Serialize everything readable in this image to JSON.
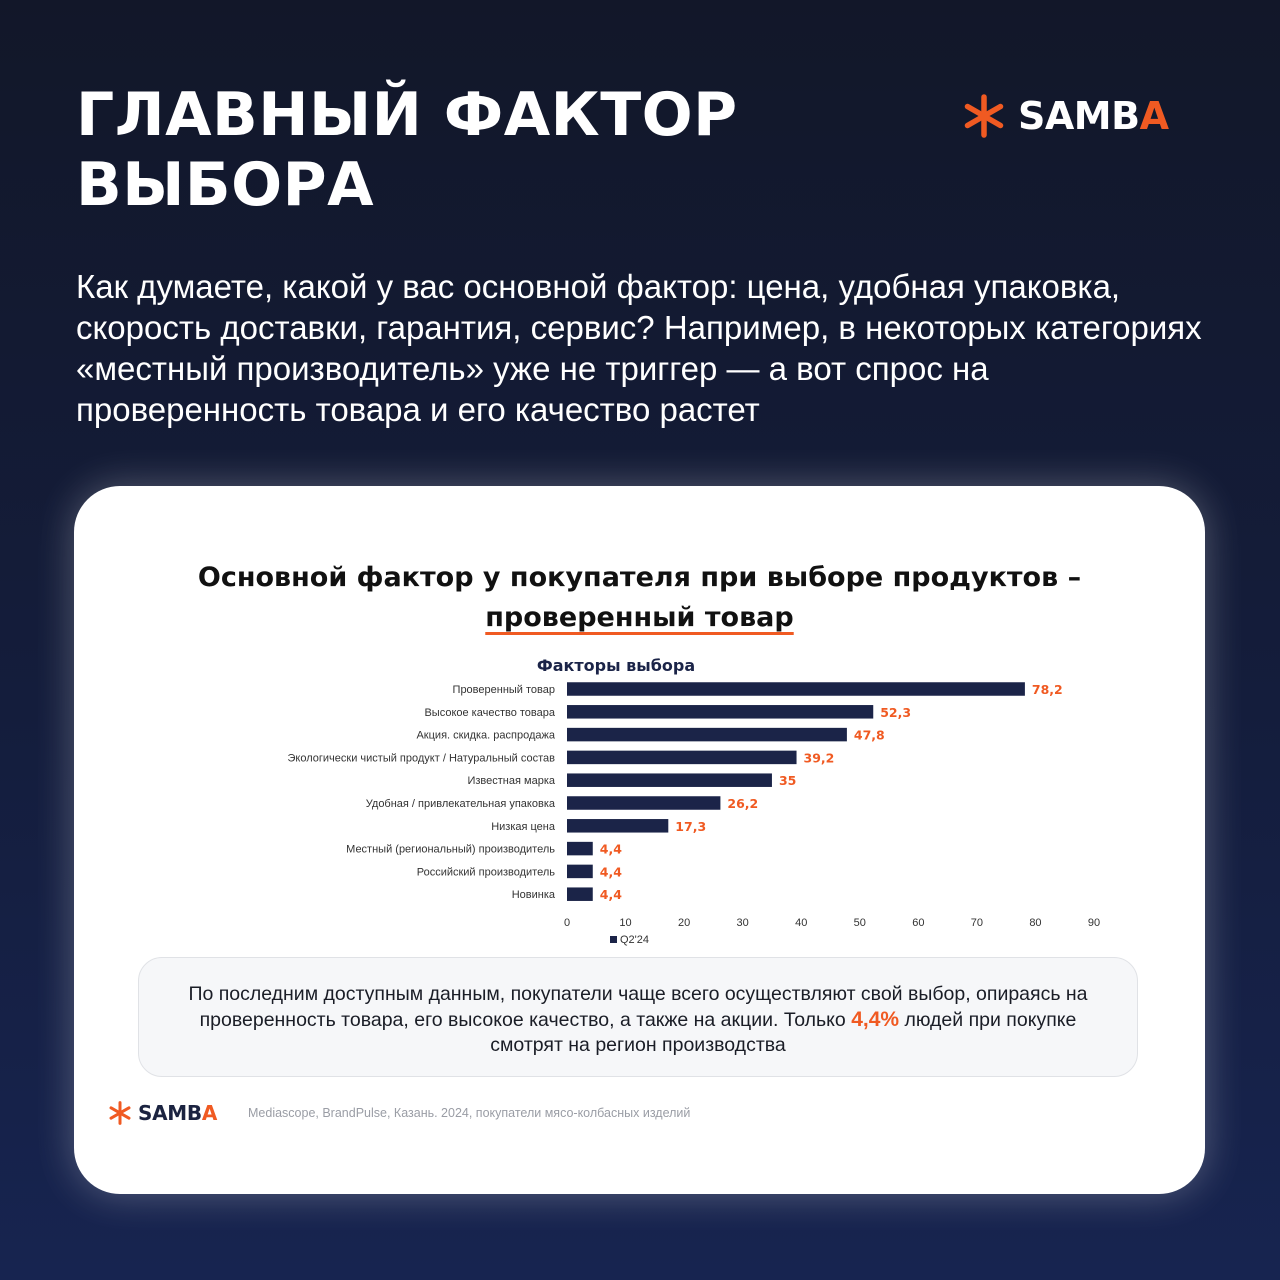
{
  "header": {
    "title_line1": "ГЛАВНЫЙ ФАКТОР",
    "title_line2": "ВЫБОРА",
    "brand_main": "SAMB",
    "brand_accent": "A"
  },
  "lead": "Как думаете, какой у вас основной фактор: цена, удобная упаковка, скорость доставки, гарантия, сервис? Например, в некоторых категориях «местный производитель» уже не триггер — а вот спрос на проверенность товара и его качество растет",
  "card": {
    "title_line1": "Основной фактор у покупателя при выборе продуктов –",
    "title_line2": "проверенный товар",
    "summary_before": "По последним доступным данным, покупатели чаще всего осуществляют свой выбор, опираясь на проверенность товара, его высокое качество, а также на акции. Только ",
    "summary_highlight": "4,4%",
    "summary_after": " людей при покупке смотрят на регион производства",
    "brand_main": "SAMB",
    "brand_accent": "A",
    "source": "Mediascope, BrandPulse, Казань. 2024, покупатели мясо-колбасных изделий"
  },
  "colors": {
    "accent": "#f05a22",
    "bar": "#1b2448",
    "background_top": "#121729",
    "background_bottom": "#172450"
  },
  "chart_data": {
    "type": "bar",
    "orientation": "horizontal",
    "title": "Факторы выбора",
    "categories": [
      "Проверенный товар",
      "Высокое качество товара",
      "Акция. скидка. распродажа",
      "Экологически чистый продукт / Натуральный состав",
      "Известная марка",
      "Удобная / привлекательная упаковка",
      "Низкая цена",
      "Местный (региональный) производитель",
      "Российский производитель",
      "Новинка"
    ],
    "series": [
      {
        "name": "Q2'24",
        "values": [
          78.2,
          52.3,
          47.8,
          39.2,
          35,
          26.2,
          17.3,
          4.4,
          4.4,
          4.4
        ]
      }
    ],
    "value_labels": [
      "78,2",
      "52,3",
      "47,8",
      "39,2",
      "35",
      "26,2",
      "17,3",
      "4,4",
      "4,4",
      "4,4"
    ],
    "xlim": [
      0,
      90
    ],
    "xticks": [
      0,
      10,
      20,
      30,
      40,
      50,
      60,
      70,
      80,
      90
    ],
    "grid": false,
    "legend_position": "bottom-left"
  }
}
